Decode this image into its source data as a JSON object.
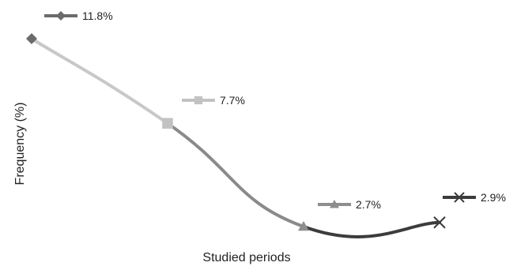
{
  "chart_data": {
    "type": "line",
    "title": "",
    "xlabel": "Studied periods",
    "ylabel": "Frequency (%)",
    "ylim": [
      2.4,
      12.2
    ],
    "grid": false,
    "legend_placement": "beside each point",
    "points": [
      {
        "period_index": 1,
        "value": 11.8,
        "label": "11.8%",
        "marker": "diamond",
        "color": "#6b6b6b",
        "segment_color": "#c8c8c8"
      },
      {
        "period_index": 2,
        "value": 7.7,
        "label": "7.7%",
        "marker": "square",
        "color": "#c2c2c2",
        "segment_color": "#8a8a8a"
      },
      {
        "period_index": 3,
        "value": 2.7,
        "label": "2.7%",
        "marker": "triangle",
        "color": "#8e8e8e",
        "segment_color": "#3c3c3c"
      },
      {
        "period_index": 4,
        "value": 2.9,
        "label": "2.9%",
        "marker": "x",
        "color": "#3c3c3c",
        "segment_color": null
      }
    ]
  }
}
